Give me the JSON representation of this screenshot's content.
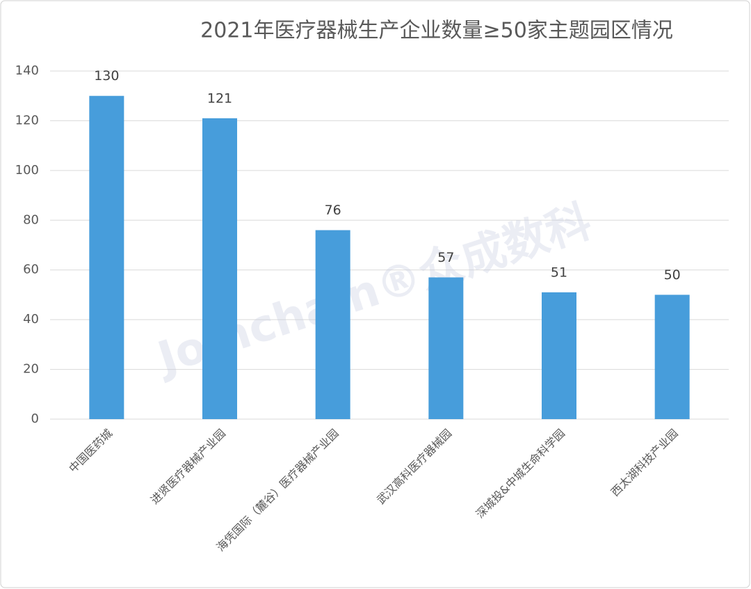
{
  "chart_data": {
    "type": "bar",
    "title": "2021年医疗器械生产企业数量≥50家主题园区情况",
    "categories": [
      "中国医药城",
      "进贤医疗器械产业园",
      "海凭国际（麓谷）医疗器械产业园",
      "武汉高科医疗器械园",
      "深城投&中城生命科学园",
      "西太湖科技产业园"
    ],
    "values": [
      130,
      121,
      76,
      57,
      51,
      50
    ],
    "color": "#479ddb",
    "ylim": [
      0,
      140
    ],
    "yticks": [
      0,
      20,
      40,
      60,
      80,
      100,
      120,
      140
    ],
    "grid": true,
    "watermark": "Joinchain®众成数科"
  }
}
